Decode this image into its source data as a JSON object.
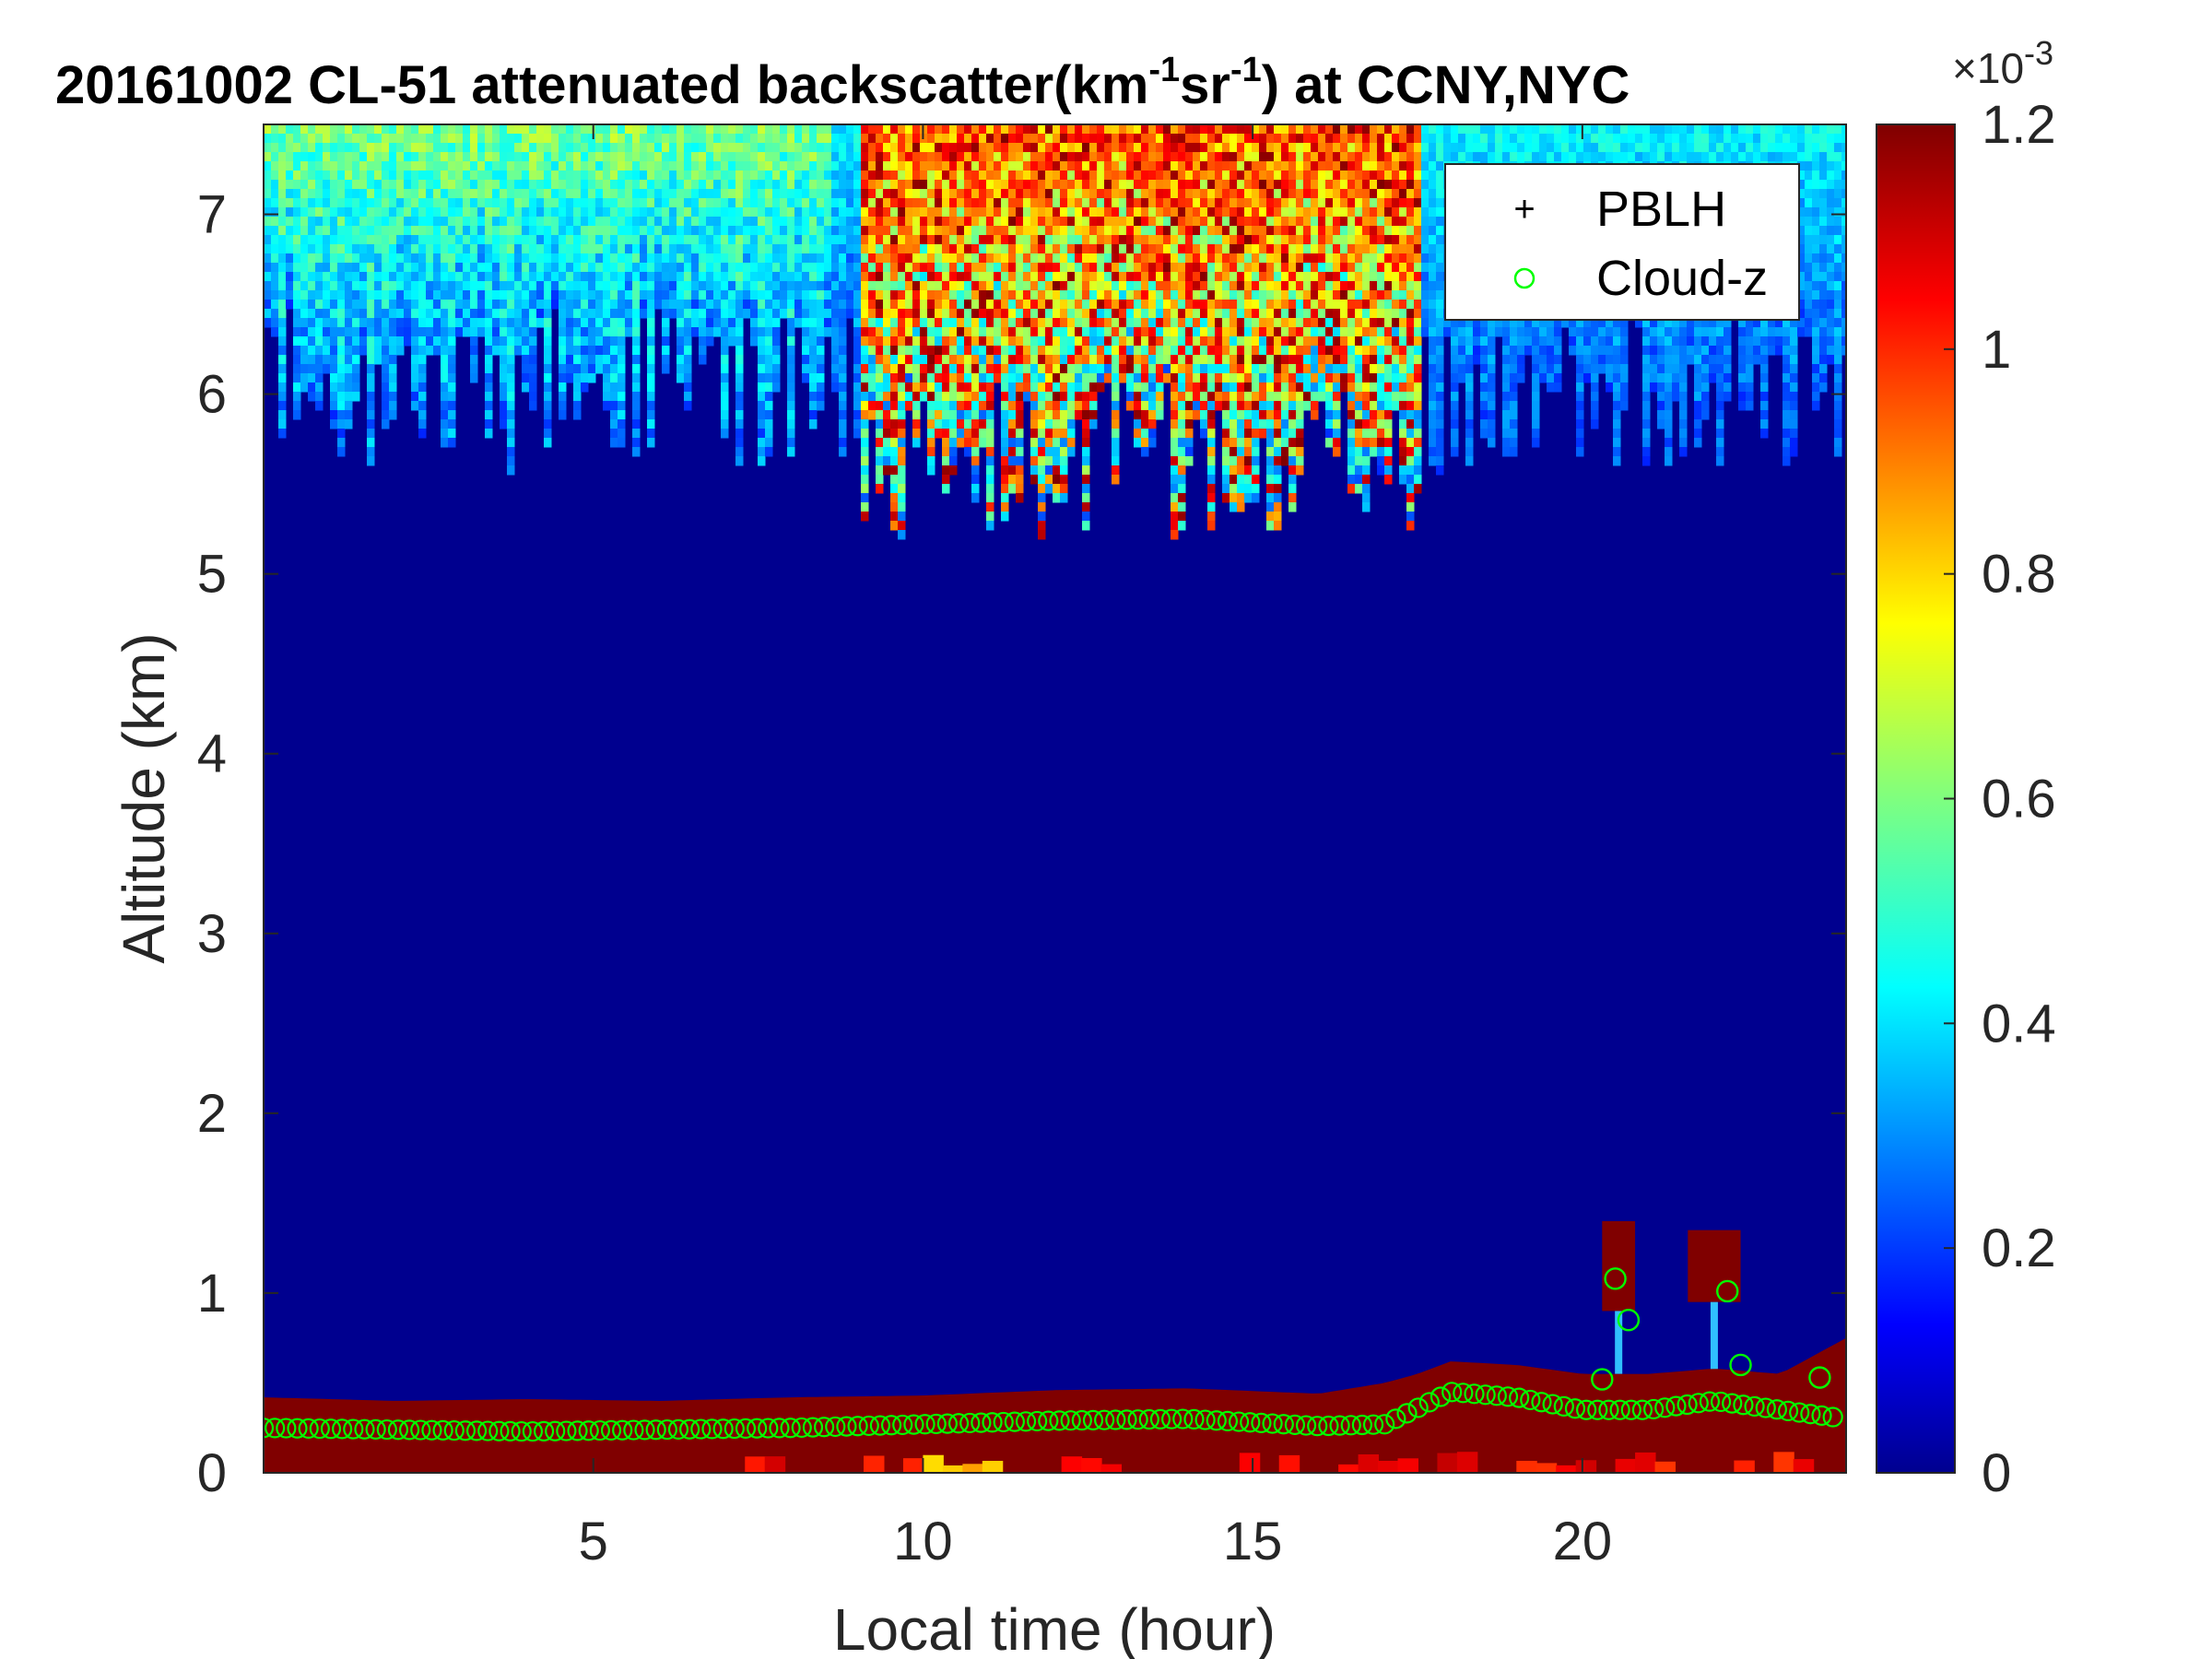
{
  "chart_data": {
    "type": "heatmap",
    "title": {
      "prefix": "20161002  CL-51 attenuated backscatter(km",
      "sup1": "-1",
      "mid": "sr",
      "sup2": "-1",
      "suffix": ") at CCNY,NYC"
    },
    "xlabel": "Local time (hour)",
    "ylabel": "Altitude (km)",
    "xlim": [
      0,
      24
    ],
    "ylim": [
      0,
      7.5
    ],
    "xticks": [
      5,
      10,
      15,
      20
    ],
    "yticks": [
      0,
      1,
      2,
      3,
      4,
      5,
      6,
      7
    ],
    "colorbar": {
      "ticks": [
        "0",
        "0.2",
        "0.4",
        "0.6",
        "0.8",
        "1",
        "1.2"
      ],
      "tick_values": [
        0,
        0.2,
        0.4,
        0.6,
        0.8,
        1.0,
        1.2
      ],
      "range": [
        0,
        1.2
      ],
      "exponent_label": "×10",
      "exponent": "-3",
      "colormap": "jet"
    },
    "legend": {
      "placement": "top-right",
      "entries": [
        {
          "name": "PBLH",
          "marker": "+",
          "color": "#000000"
        },
        {
          "name": "Cloud-z",
          "marker": "o",
          "color": "#00ff00"
        }
      ]
    },
    "layer_top_km": {
      "hours": [
        0,
        2,
        4,
        6,
        8,
        10,
        12,
        14,
        16,
        17,
        17.5,
        18,
        19,
        20,
        21,
        22,
        23,
        24
      ],
      "altitude": [
        0.42,
        0.4,
        0.41,
        0.4,
        0.42,
        0.43,
        0.46,
        0.47,
        0.44,
        0.5,
        0.55,
        0.62,
        0.6,
        0.55,
        0.55,
        0.58,
        0.55,
        0.75
      ]
    },
    "cloud_blocks_km": [
      {
        "x0": 20.3,
        "x1": 20.8,
        "y0": 0.9,
        "y1": 1.4
      },
      {
        "x0": 21.6,
        "x1": 22.4,
        "y0": 0.95,
        "y1": 1.35
      }
    ],
    "cloud_z_series": {
      "hours": [
        0,
        2,
        4,
        6,
        8,
        10,
        12,
        14,
        16,
        17,
        18,
        19,
        20,
        21,
        22,
        23,
        24
      ],
      "altitude": [
        0.25,
        0.24,
        0.23,
        0.24,
        0.25,
        0.27,
        0.29,
        0.3,
        0.26,
        0.27,
        0.45,
        0.42,
        0.35,
        0.35,
        0.4,
        0.35,
        0.3
      ]
    },
    "cloud_z_extra_points": [
      {
        "x": 20.5,
        "y": 1.08
      },
      {
        "x": 20.7,
        "y": 0.85
      },
      {
        "x": 22.2,
        "y": 1.01
      },
      {
        "x": 22.4,
        "y": 0.6
      },
      {
        "x": 20.3,
        "y": 0.52
      },
      {
        "x": 23.6,
        "y": 0.53
      }
    ]
  }
}
